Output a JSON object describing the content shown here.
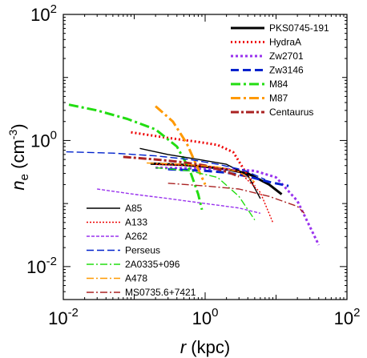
{
  "chart_data": {
    "type": "line",
    "xscale": "log",
    "yscale": "log",
    "xlim": [
      0.01,
      100
    ],
    "ylim": [
      0.003,
      100
    ],
    "xlabel": {
      "italic": "r",
      "rest": " (kpc)"
    },
    "ylabel": {
      "italic": "n",
      "sub": "e",
      "rest": " (cm",
      "sup": "-3",
      "close": ")"
    },
    "x_ticks": [
      {
        "value": 0.01,
        "base": "10",
        "exp": "-2"
      },
      {
        "value": 1,
        "base": "10",
        "exp": "0"
      },
      {
        "value": 100,
        "base": "10",
        "exp": "2"
      }
    ],
    "y_ticks": [
      {
        "value": 0.01,
        "base": "10",
        "exp": "-2"
      },
      {
        "value": 1,
        "base": "10",
        "exp": "0"
      },
      {
        "value": 100,
        "base": "10",
        "exp": "2"
      }
    ],
    "series": [
      {
        "name": "PKS0745-191",
        "color": "#000000",
        "width": 3,
        "dash": "",
        "legend": "top",
        "x": [
          0.17,
          0.5,
          1.0,
          2.0,
          4.0,
          8.0,
          12.0
        ],
        "y": [
          0.43,
          0.41,
          0.385,
          0.35,
          0.3,
          0.2,
          0.14
        ]
      },
      {
        "name": "HydraA",
        "color": "#ee0000",
        "width": 3,
        "dash": "2,3",
        "legend": "top",
        "x": [
          0.09,
          0.3,
          0.8,
          1.5,
          2.5,
          3.5,
          5.0
        ],
        "y": [
          1.35,
          1.1,
          0.95,
          0.85,
          0.65,
          0.35,
          0.19
        ]
      },
      {
        "name": "Zw2701",
        "color": "#9933ee",
        "width": 3,
        "dash": "3,3",
        "legend": "top",
        "x": [
          0.2,
          0.8,
          2.0,
          5.0,
          10.0,
          20.0,
          40.0
        ],
        "y": [
          0.37,
          0.36,
          0.35,
          0.33,
          0.26,
          0.11,
          0.022
        ]
      },
      {
        "name": "Zw3146",
        "color": "#0022cc",
        "width": 3,
        "dash": "10,5",
        "legend": "top",
        "x": [
          0.3,
          1.0,
          2.0,
          4.0,
          8.0,
          15.0
        ],
        "y": [
          0.35,
          0.33,
          0.31,
          0.27,
          0.22,
          0.19
        ]
      },
      {
        "name": "M84",
        "color": "#22dd11",
        "width": 3,
        "dash": "12,4,3,4",
        "legend": "top",
        "x": [
          0.012,
          0.03,
          0.08,
          0.2,
          0.4,
          0.6,
          0.8,
          0.9
        ],
        "y": [
          3.7,
          3.0,
          2.2,
          1.5,
          0.8,
          0.35,
          0.14,
          0.08
        ]
      },
      {
        "name": "M87",
        "color": "#ff9900",
        "width": 3,
        "dash": "12,4,3,4",
        "legend": "top",
        "x": [
          0.2,
          0.35,
          0.55,
          0.8,
          1.0
        ],
        "y": [
          3.5,
          2.0,
          0.9,
          0.35,
          0.2
        ]
      },
      {
        "name": "Centaurus",
        "color": "#aa2222",
        "width": 3,
        "dash": "10,3,3,3",
        "legend": "top",
        "x": [
          0.07,
          0.2,
          0.5,
          1.0,
          2.0,
          3.0
        ],
        "y": [
          0.55,
          0.5,
          0.45,
          0.4,
          0.32,
          0.27
        ]
      },
      {
        "name": "A85",
        "color": "#000000",
        "width": 1.4,
        "dash": "",
        "legend": "bottom",
        "x": [
          0.12,
          0.3,
          0.8,
          2.0,
          4.0,
          6.0
        ],
        "y": [
          0.75,
          0.6,
          0.5,
          0.42,
          0.28,
          0.12
        ]
      },
      {
        "name": "A133",
        "color": "#ee0000",
        "width": 1.4,
        "dash": "2,2",
        "legend": "bottom",
        "x": [
          0.2,
          0.6,
          1.5,
          3.0,
          6.0,
          9.0
        ],
        "y": [
          0.42,
          0.4,
          0.38,
          0.32,
          0.15,
          0.05
        ]
      },
      {
        "name": "A262",
        "color": "#9933ee",
        "width": 1.4,
        "dash": "4,2",
        "legend": "bottom",
        "x": [
          0.03,
          0.1,
          0.3,
          1.0,
          3.0,
          6.0
        ],
        "y": [
          0.17,
          0.14,
          0.12,
          0.1,
          0.085,
          0.07
        ]
      },
      {
        "name": "Perseus",
        "color": "#0022cc",
        "width": 1.4,
        "dash": "9,4",
        "legend": "bottom",
        "x": [
          0.011,
          0.05,
          0.2,
          0.6,
          1.5,
          3.5,
          7.0
        ],
        "y": [
          0.66,
          0.63,
          0.57,
          0.5,
          0.42,
          0.34,
          0.24
        ]
      },
      {
        "name": "2A0335+096",
        "color": "#22dd11",
        "width": 1.4,
        "dash": "9,3,2,3",
        "legend": "bottom",
        "x": [
          0.2,
          0.6,
          1.5,
          3.0,
          5.0
        ],
        "y": [
          0.37,
          0.33,
          0.26,
          0.13,
          0.055
        ]
      },
      {
        "name": "A478",
        "color": "#ff9900",
        "width": 1.4,
        "dash": "9,3,2,3",
        "legend": "bottom",
        "x": [
          0.15,
          0.5,
          1.5,
          3.0,
          5.0
        ],
        "y": [
          0.44,
          0.42,
          0.38,
          0.32,
          0.22
        ]
      },
      {
        "name": "MS0735.6+7421",
        "color": "#aa2222",
        "width": 1.4,
        "dash": "9,3,2,3",
        "legend": "bottom",
        "x": [
          0.3,
          1.0,
          3.0,
          8.0,
          20.0,
          25.0
        ],
        "y": [
          0.21,
          0.19,
          0.17,
          0.13,
          0.09,
          0.07
        ]
      }
    ]
  }
}
